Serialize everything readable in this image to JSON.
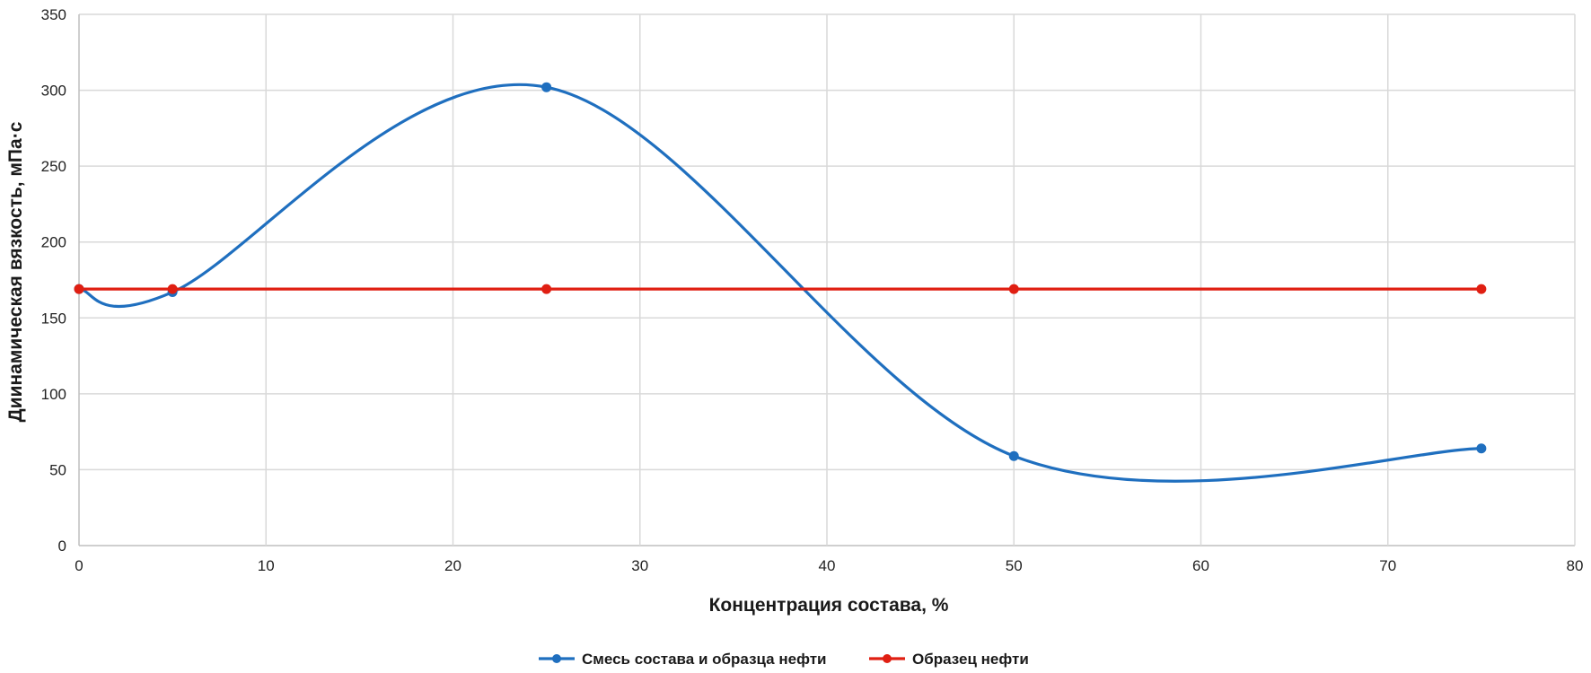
{
  "chart_data": {
    "type": "line",
    "xlabel": "Концентрация состава, %",
    "ylabel": "Диинамическая вязкость, мПа·с",
    "xlim": [
      0,
      80
    ],
    "ylim": [
      0,
      350
    ],
    "x_ticks": [
      0,
      10,
      20,
      30,
      40,
      50,
      60,
      70,
      80
    ],
    "y_ticks": [
      0,
      50,
      100,
      150,
      200,
      250,
      300,
      350
    ],
    "grid": true,
    "legend_position": "bottom",
    "series": [
      {
        "name": "Смесь состава и образца нефти",
        "color": "#1f6fbf",
        "smooth": true,
        "x": [
          0,
          5,
          25,
          50,
          75
        ],
        "y": [
          169,
          167,
          302,
          59,
          64
        ]
      },
      {
        "name": "Образец нефти",
        "color": "#e01f12",
        "smooth": false,
        "x": [
          0,
          5,
          25,
          50,
          75
        ],
        "y": [
          169,
          169,
          169,
          169,
          169
        ]
      }
    ]
  }
}
